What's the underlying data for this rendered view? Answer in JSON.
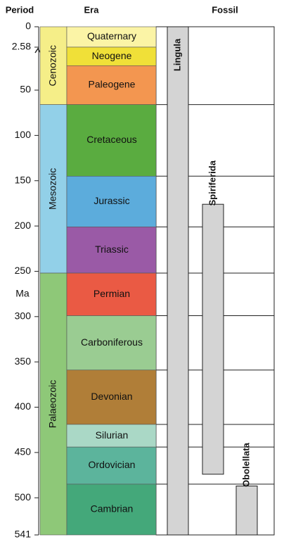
{
  "chart_data": {
    "type": "geologic-timescale",
    "headers": [
      "Period",
      "Era",
      "Fossil"
    ],
    "y_label": "Ma",
    "ylim": [
      0,
      541
    ],
    "yticks": [
      0,
      2.58,
      50,
      100,
      150,
      200,
      250,
      300,
      350,
      400,
      450,
      500,
      541
    ],
    "axis_break": 2.58,
    "eras": [
      {
        "name": "Cenozoic",
        "start": 0,
        "end": 66,
        "color": "#f5ee88"
      },
      {
        "name": "Mesozoic",
        "start": 66,
        "end": 252,
        "color": "#92d0e8"
      },
      {
        "name": "Palaeozoic",
        "start": 252,
        "end": 541,
        "color": "#8ec878"
      }
    ],
    "periods": [
      {
        "name": "Quaternary",
        "start": 0,
        "end": 2.58,
        "color": "#fbf4a6"
      },
      {
        "name": "Neogene",
        "start": 2.58,
        "end": 23,
        "color": "#f0e038"
      },
      {
        "name": "Paleogene",
        "start": 23,
        "end": 66,
        "color": "#f39650"
      },
      {
        "name": "Cretaceous",
        "start": 66,
        "end": 145,
        "color": "#5aac40"
      },
      {
        "name": "Jurassic",
        "start": 145,
        "end": 201,
        "color": "#5cacdc"
      },
      {
        "name": "Triassic",
        "start": 201,
        "end": 252,
        "color": "#9a5aa6"
      },
      {
        "name": "Permian",
        "start": 252,
        "end": 299,
        "color": "#ea5a44"
      },
      {
        "name": "Carboniferous",
        "start": 299,
        "end": 359,
        "color": "#9acc92"
      },
      {
        "name": "Devonian",
        "start": 359,
        "end": 419,
        "color": "#b07e38"
      },
      {
        "name": "Silurian",
        "start": 419,
        "end": 444,
        "color": "#aad8c6"
      },
      {
        "name": "Ordovician",
        "start": 444,
        "end": 485,
        "color": "#5cb49c"
      },
      {
        "name": "Cambrian",
        "start": 485,
        "end": 541,
        "color": "#44a87a"
      }
    ],
    "fossils": [
      {
        "name": "Lingula",
        "start": 0,
        "end": 541,
        "color": "#d4d4d4"
      },
      {
        "name": "Spiriferida",
        "start": 176,
        "end": 474,
        "color": "#d4d4d4"
      },
      {
        "name": "Obolellata",
        "start": 487,
        "end": 541,
        "color": "#d4d4d4"
      }
    ]
  }
}
